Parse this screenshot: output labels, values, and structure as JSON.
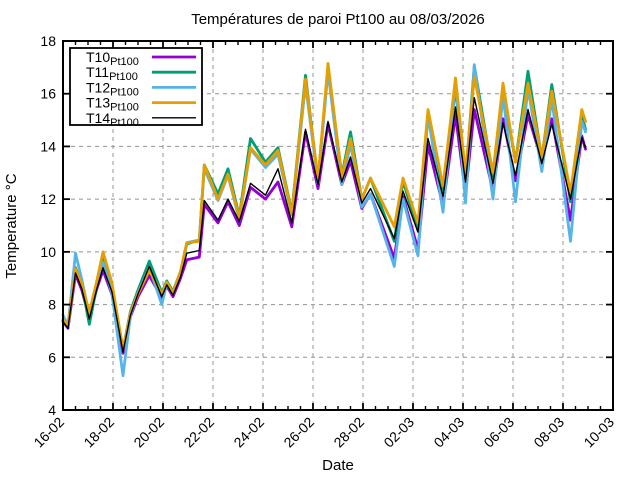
{
  "chart_data": {
    "type": "line",
    "title": "Températures de paroi Pt100 au 08/03/2026",
    "xlabel": "Date",
    "ylabel": "Temperature °C",
    "x_axis": {
      "range_days": [
        0,
        22
      ],
      "major_tick_labels": [
        "16-02",
        "18-02",
        "20-02",
        "22-02",
        "24-02",
        "26-02",
        "28-02",
        "02-03",
        "04-03",
        "06-03",
        "08-03",
        "10-03"
      ],
      "major_tick_positions_days": [
        0,
        2,
        4,
        6,
        8,
        10,
        12,
        14,
        16,
        18,
        20,
        22
      ],
      "minor_tick_interval_days": 0.5,
      "tick_label_rotation_deg": -45
    },
    "y_axis": {
      "range": [
        4,
        18
      ],
      "tick_interval": 2,
      "tick_labels": [
        "4",
        "6",
        "8",
        "10",
        "12",
        "14",
        "16",
        "18"
      ],
      "tick_values": [
        4,
        6,
        8,
        10,
        12,
        14,
        16,
        18
      ]
    },
    "grid": {
      "show": true,
      "style": "dashed",
      "color": "#949494"
    },
    "legend": {
      "position": "top-left",
      "border_color": "#000000",
      "background": "#ffffff"
    },
    "x_days": [
      0.0,
      0.2,
      0.5,
      0.75,
      1.05,
      1.35,
      1.6,
      1.95,
      2.4,
      2.7,
      3.0,
      3.45,
      3.95,
      4.15,
      4.4,
      4.7,
      4.95,
      5.45,
      5.65,
      6.2,
      6.6,
      7.05,
      7.5,
      8.1,
      8.6,
      9.15,
      9.7,
      10.2,
      10.6,
      11.15,
      11.5,
      11.95,
      12.3,
      13.25,
      13.6,
      14.2,
      14.6,
      15.2,
      15.7,
      16.1,
      16.45,
      17.2,
      17.6,
      18.1,
      18.6,
      19.15,
      19.55,
      20.3,
      20.75,
      20.9
    ],
    "series": [
      {
        "name": "T10_Pt100",
        "label_main": "T10",
        "label_sub": "Pt100",
        "color": "#9400D3",
        "line_width": 2.8,
        "values": [
          7.35,
          7.1,
          9.15,
          8.55,
          7.5,
          8.6,
          9.3,
          8.4,
          6.15,
          7.55,
          8.3,
          9.1,
          8.25,
          8.7,
          8.3,
          9.0,
          9.7,
          9.8,
          11.8,
          11.1,
          11.9,
          11.0,
          12.45,
          12.0,
          12.65,
          10.95,
          14.55,
          12.4,
          14.85,
          12.55,
          13.45,
          11.65,
          12.2,
          9.75,
          12.1,
          10.1,
          14.05,
          11.75,
          15.2,
          12.2,
          15.4,
          12.3,
          15.05,
          12.7,
          15.2,
          13.45,
          15.05,
          11.2,
          14.4,
          13.9
        ]
      },
      {
        "name": "T11_Pt100",
        "label_main": "T11",
        "label_sub": "Pt100",
        "color": "#009E73",
        "line_width": 2.8,
        "values": [
          7.4,
          7.15,
          9.4,
          8.75,
          7.25,
          8.7,
          9.85,
          8.75,
          6.3,
          7.75,
          8.55,
          9.65,
          8.45,
          8.9,
          8.5,
          9.25,
          10.3,
          10.45,
          13.3,
          12.2,
          13.15,
          11.35,
          14.3,
          13.4,
          13.95,
          11.5,
          16.7,
          12.7,
          17.0,
          12.9,
          14.55,
          12.0,
          12.8,
          10.4,
          12.7,
          10.8,
          15.2,
          12.3,
          16.2,
          12.75,
          17.05,
          12.85,
          16.2,
          13.4,
          16.85,
          13.55,
          16.35,
          11.9,
          15.2,
          14.65
        ]
      },
      {
        "name": "T12_Pt100",
        "label_main": "T12",
        "label_sub": "Pt100",
        "color": "#56B4E9",
        "line_width": 2.8,
        "values": [
          7.6,
          7.2,
          9.95,
          8.95,
          7.6,
          8.75,
          9.6,
          8.45,
          5.3,
          7.6,
          8.45,
          9.4,
          8.0,
          8.8,
          8.4,
          9.2,
          10.35,
          10.45,
          13.15,
          11.95,
          12.9,
          11.2,
          13.9,
          13.2,
          13.7,
          11.4,
          16.35,
          12.6,
          16.85,
          12.55,
          14.1,
          11.7,
          12.2,
          9.45,
          12.0,
          9.85,
          15.2,
          11.5,
          16.5,
          11.85,
          17.1,
          12.0,
          15.95,
          11.9,
          16.2,
          13.05,
          15.8,
          10.4,
          14.95,
          14.55
        ]
      },
      {
        "name": "T13_Pt100",
        "label_main": "T13",
        "label_sub": "Pt100",
        "color": "#E69F00",
        "line_width": 2.8,
        "values": [
          7.45,
          7.2,
          9.35,
          8.8,
          7.7,
          8.9,
          10.0,
          8.85,
          6.3,
          7.7,
          8.4,
          9.3,
          8.4,
          8.85,
          8.45,
          9.25,
          10.35,
          10.4,
          13.3,
          12.0,
          12.95,
          11.3,
          13.95,
          13.3,
          13.85,
          11.45,
          16.55,
          12.75,
          17.15,
          12.85,
          14.3,
          12.0,
          12.8,
          10.95,
          12.8,
          11.1,
          15.4,
          12.5,
          16.6,
          13.0,
          16.65,
          13.0,
          16.4,
          13.4,
          16.4,
          13.6,
          16.1,
          12.25,
          15.4,
          14.95
        ]
      },
      {
        "name": "T14_Pt100",
        "label_main": "T14",
        "label_sub": "Pt100",
        "color": "#000000",
        "line_width": 1.4,
        "values": [
          7.35,
          7.1,
          9.2,
          8.6,
          7.45,
          8.6,
          9.4,
          8.5,
          6.2,
          7.6,
          8.4,
          9.45,
          8.3,
          8.75,
          8.35,
          9.05,
          9.95,
          10.05,
          11.95,
          11.2,
          12.0,
          11.15,
          12.6,
          12.15,
          13.15,
          11.1,
          14.65,
          12.55,
          14.95,
          12.65,
          13.6,
          11.85,
          12.4,
          10.5,
          12.3,
          10.75,
          14.3,
          12.1,
          15.5,
          12.65,
          15.85,
          12.6,
          14.9,
          12.9,
          15.4,
          13.35,
          14.85,
          12.0,
          14.35,
          13.95
        ]
      }
    ]
  }
}
